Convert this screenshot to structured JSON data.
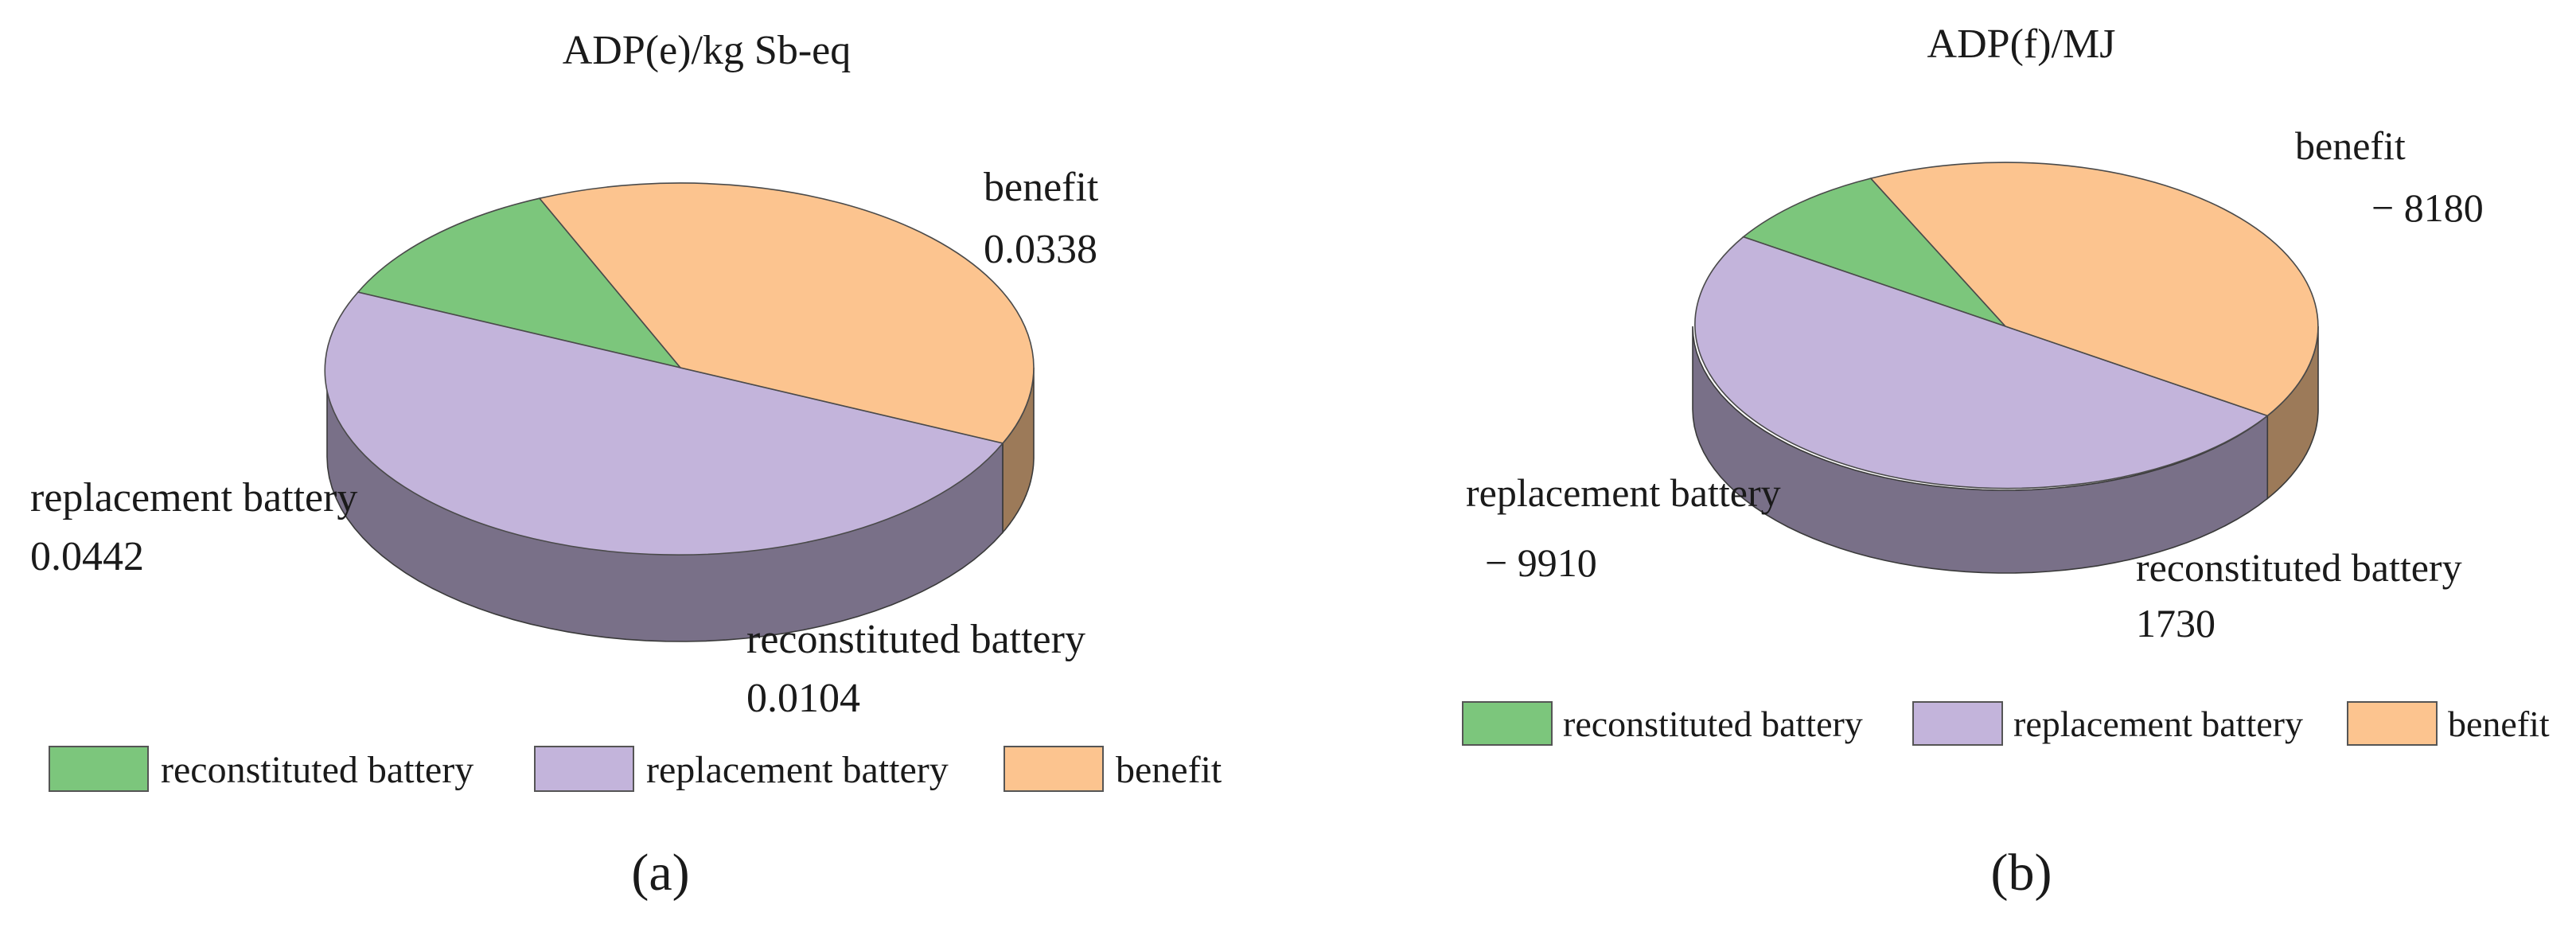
{
  "chart_data": [
    {
      "type": "pie",
      "style": "3d",
      "title": "ADP(e)/kg Sb-eq",
      "panel_label": "(a)",
      "legend_position": "bottom",
      "slices": [
        {
          "name": "reconstituted battery",
          "value": 0.0104,
          "label": "0.0104",
          "color": "#7cc67c"
        },
        {
          "name": "replacement battery",
          "value": 0.0442,
          "label": "0.0442",
          "color": "#c3b4db"
        },
        {
          "name": "benefit",
          "value": 0.0338,
          "label": "0.0338",
          "color": "#fcc48f"
        }
      ]
    },
    {
      "type": "pie",
      "style": "3d",
      "title": "ADP(f)/MJ",
      "panel_label": "(b)",
      "legend_position": "bottom",
      "slices": [
        {
          "name": "reconstituted battery",
          "value": 1730,
          "label": "1730",
          "color": "#7cc67c"
        },
        {
          "name": "replacement battery",
          "value": -9910,
          "label": "− 9910",
          "color": "#c3b4db"
        },
        {
          "name": "benefit",
          "value": -8180,
          "label": "− 8180",
          "color": "#fcc48f"
        }
      ]
    }
  ]
}
